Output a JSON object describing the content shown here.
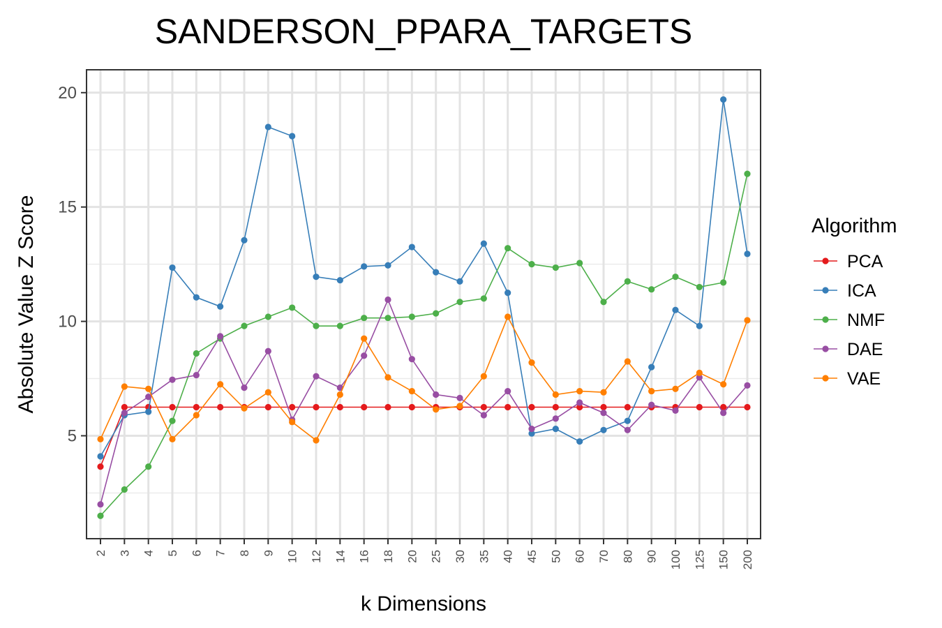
{
  "chart_data": {
    "type": "line",
    "title": "SANDERSON_PPARA_TARGETS",
    "xlabel": "k Dimensions",
    "ylabel": "Absolute Value Z Score",
    "categories": [
      "2",
      "3",
      "4",
      "5",
      "6",
      "7",
      "8",
      "9",
      "10",
      "12",
      "14",
      "16",
      "18",
      "20",
      "25",
      "30",
      "35",
      "40",
      "45",
      "50",
      "60",
      "70",
      "80",
      "90",
      "100",
      "125",
      "150",
      "200"
    ],
    "ylim": [
      0.5,
      21
    ],
    "yticks": [
      5,
      10,
      15,
      20
    ],
    "grid": true,
    "legend_title": "Algorithm",
    "legend_position": "right",
    "series": [
      {
        "name": "PCA",
        "color": "#e41a1c",
        "values": [
          3.65,
          6.25,
          6.25,
          6.25,
          6.25,
          6.25,
          6.25,
          6.25,
          6.25,
          6.25,
          6.25,
          6.25,
          6.25,
          6.25,
          6.25,
          6.25,
          6.25,
          6.25,
          6.25,
          6.25,
          6.25,
          6.25,
          6.25,
          6.25,
          6.25,
          6.25,
          6.25,
          6.25
        ]
      },
      {
        "name": "ICA",
        "color": "#377eb8",
        "values": [
          4.1,
          5.9,
          6.05,
          12.35,
          11.05,
          10.65,
          13.55,
          18.5,
          18.1,
          11.95,
          11.8,
          12.4,
          12.45,
          13.25,
          12.15,
          11.75,
          13.4,
          11.25,
          5.1,
          5.3,
          4.75,
          5.25,
          5.65,
          8.0,
          10.5,
          9.8,
          19.7,
          12.95
        ]
      },
      {
        "name": "NMF",
        "color": "#4daf4a",
        "values": [
          1.5,
          2.65,
          3.65,
          5.65,
          8.6,
          9.25,
          9.8,
          10.2,
          10.6,
          9.8,
          9.8,
          10.15,
          10.15,
          10.2,
          10.35,
          10.85,
          11.0,
          13.2,
          12.5,
          12.35,
          12.55,
          10.85,
          11.75,
          11.4,
          11.95,
          11.5,
          11.7,
          16.45
        ]
      },
      {
        "name": "DAE",
        "color": "#984ea3",
        "values": [
          2.0,
          6.0,
          6.7,
          7.45,
          7.65,
          9.35,
          7.1,
          8.7,
          5.7,
          7.6,
          7.1,
          8.5,
          10.95,
          8.35,
          6.8,
          6.65,
          5.9,
          6.95,
          5.3,
          5.75,
          6.45,
          6.0,
          5.25,
          6.35,
          6.1,
          7.55,
          6.0,
          7.2
        ]
      },
      {
        "name": "VAE",
        "color": "#ff7f00",
        "values": [
          4.85,
          7.15,
          7.05,
          4.85,
          5.9,
          7.25,
          6.2,
          6.9,
          5.6,
          4.8,
          6.8,
          9.25,
          7.55,
          6.95,
          6.15,
          6.3,
          7.6,
          10.2,
          8.2,
          6.8,
          6.95,
          6.9,
          8.25,
          6.95,
          7.05,
          7.75,
          7.25,
          10.05
        ]
      }
    ]
  }
}
